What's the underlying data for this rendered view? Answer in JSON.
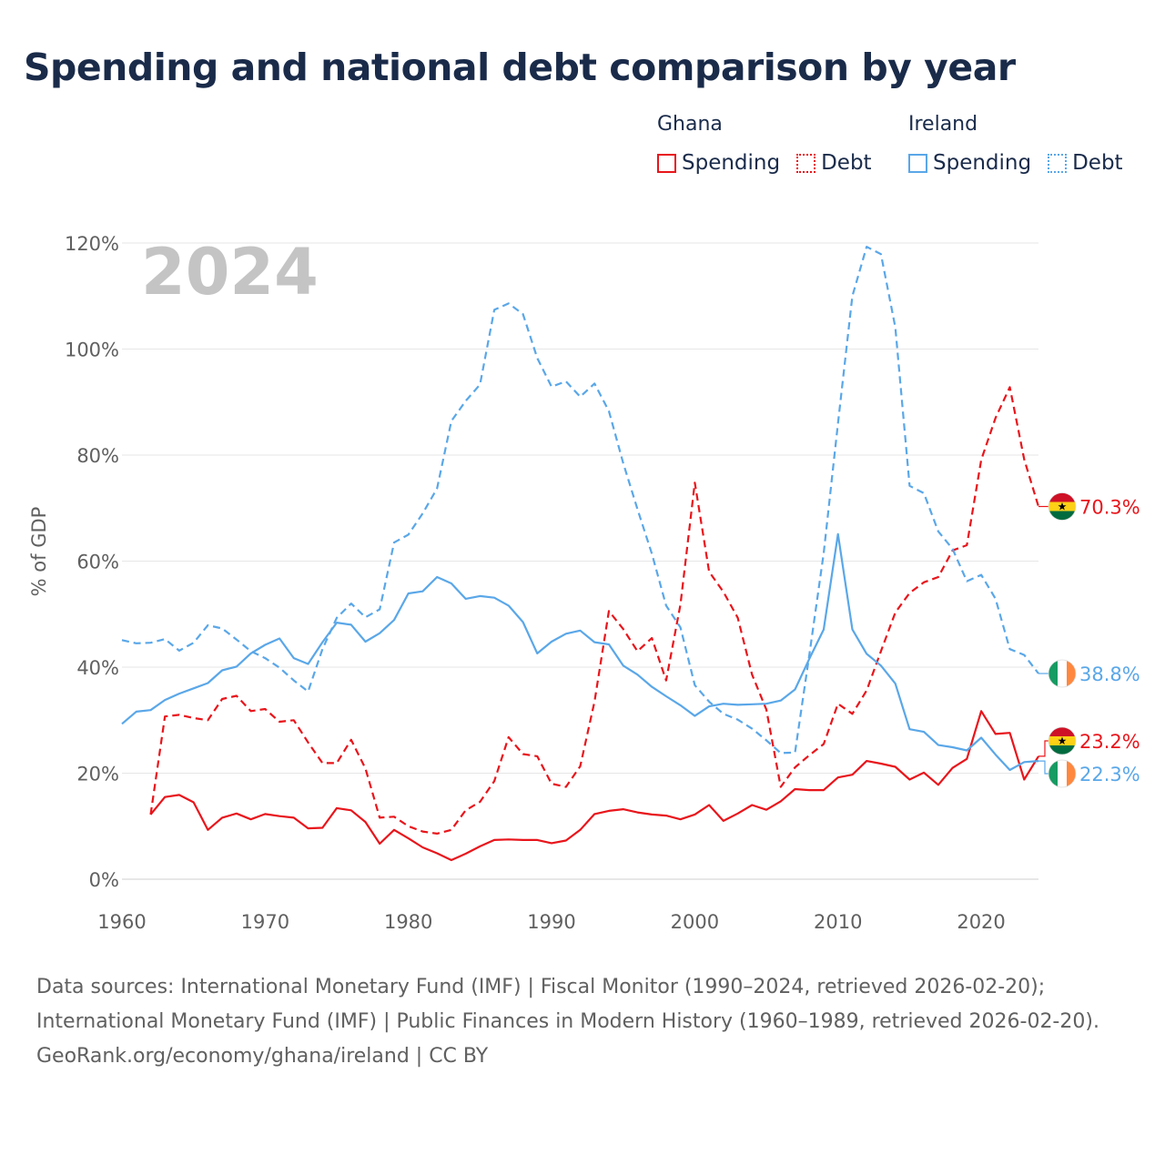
{
  "title": "Spending and national debt comparison by year",
  "legend": {
    "groups": [
      {
        "country": "Ghana",
        "color": "#e8151b",
        "items": [
          {
            "label": "Spending",
            "style": "solid"
          },
          {
            "label": "Debt",
            "style": "dotted"
          }
        ]
      },
      {
        "country": "Ireland",
        "color": "#5aa7e8",
        "items": [
          {
            "label": "Spending",
            "style": "solid"
          },
          {
            "label": "Debt",
            "style": "dotted"
          }
        ]
      }
    ]
  },
  "chart_data": {
    "type": "line",
    "year_watermark": "2024",
    "ylabel": "% of GDP",
    "xlabel": "",
    "ylim": [
      0,
      120
    ],
    "yticks": [
      0,
      20,
      40,
      60,
      80,
      100,
      120
    ],
    "ytick_labels": [
      "0%",
      "20%",
      "40%",
      "60%",
      "80%",
      "100%",
      "120%"
    ],
    "xlim": [
      1960,
      2024
    ],
    "xticks": [
      1960,
      1970,
      1980,
      1990,
      2000,
      2010,
      2020
    ],
    "xtick_labels": [
      "1960",
      "1970",
      "1980",
      "1990",
      "2000",
      "2010",
      "2020"
    ],
    "grid": true,
    "series": [
      {
        "name": "Ghana Spending",
        "country": "Ghana",
        "color": "#e8151b",
        "dash": "solid",
        "start_year": 1962,
        "values": [
          12.2,
          15.5,
          15.9,
          14.5,
          9.3,
          11.6,
          12.4,
          11.3,
          12.3,
          11.9,
          11.6,
          9.6,
          9.7,
          13.4,
          13.0,
          10.8,
          6.7,
          9.3,
          7.7,
          6.0,
          4.9,
          3.6,
          4.8,
          6.2,
          7.4,
          7.5,
          7.4,
          7.4,
          6.8,
          7.3,
          9.3,
          12.3,
          12.9,
          13.2,
          12.6,
          12.2,
          12.0,
          11.3,
          12.2,
          14.0,
          11.0,
          12.4,
          14.0,
          13.1,
          14.7,
          17.0,
          16.8,
          16.8,
          19.2,
          19.7,
          22.3,
          21.8,
          21.2,
          18.8,
          20.1,
          17.8,
          21.0,
          22.7,
          31.7,
          27.4,
          27.6,
          18.8,
          23.2
        ]
      },
      {
        "name": "Ghana Debt",
        "country": "Ghana",
        "color": "#e8151b",
        "dash": "dashed",
        "start_year": 1962,
        "values": [
          12.2,
          30.7,
          31.0,
          30.4,
          30.0,
          34.0,
          34.6,
          31.7,
          32.1,
          29.7,
          30.0,
          25.8,
          21.9,
          21.9,
          26.3,
          20.9,
          11.6,
          11.8,
          10.0,
          9.0,
          8.6,
          9.3,
          13.0,
          14.6,
          18.5,
          26.8,
          23.6,
          23.2,
          18.0,
          17.4,
          21.3,
          33.5,
          50.6,
          47.2,
          43.0,
          45.5,
          37.5,
          51.8,
          74.8,
          58.0,
          54.2,
          49.3,
          38.6,
          32.0,
          17.4,
          21.1,
          23.4,
          25.5,
          33.1,
          31.2,
          35.6,
          43.0,
          50.3,
          54.0,
          56.0,
          57.0,
          62.0,
          63.0,
          79.1,
          87.0,
          92.8,
          79.2,
          70.3
        ]
      },
      {
        "name": "Ireland Spending",
        "country": "Ireland",
        "color": "#5aa7e8",
        "dash": "solid",
        "start_year": 1960,
        "values": [
          29.3,
          31.6,
          31.9,
          33.8,
          35.0,
          36.0,
          37.0,
          39.4,
          40.1,
          42.6,
          44.2,
          45.4,
          41.7,
          40.6,
          44.7,
          48.4,
          48.0,
          44.8,
          46.4,
          48.9,
          53.9,
          54.3,
          57.0,
          55.8,
          52.9,
          53.4,
          53.1,
          51.6,
          48.5,
          42.6,
          44.8,
          46.3,
          46.9,
          44.7,
          44.3,
          40.3,
          38.6,
          36.3,
          34.5,
          32.8,
          30.8,
          32.6,
          33.1,
          32.9,
          33.0,
          33.1,
          33.7,
          35.8,
          41.6,
          47.1,
          65.1,
          47.1,
          42.5,
          40.3,
          36.9,
          28.3,
          27.8,
          25.3,
          24.9,
          24.3,
          26.7,
          23.5,
          20.6,
          22.1,
          22.3
        ]
      },
      {
        "name": "Ireland Debt",
        "country": "Ireland",
        "color": "#5aa7e8",
        "dash": "dashed",
        "start_year": 1960,
        "values": [
          45.1,
          44.5,
          44.6,
          45.3,
          43.1,
          44.6,
          47.9,
          47.3,
          45.2,
          43.0,
          41.7,
          39.9,
          37.5,
          35.4,
          43.4,
          49.3,
          52.0,
          49.4,
          50.9,
          63.5,
          65.0,
          69.0,
          73.7,
          86.4,
          90.2,
          93.3,
          107.4,
          108.6,
          106.6,
          98.3,
          92.9,
          93.9,
          91.0,
          93.5,
          88.3,
          78.5,
          69.8,
          61.4,
          51.6,
          47.5,
          36.6,
          33.5,
          31.2,
          30.1,
          28.4,
          26.2,
          23.8,
          23.9,
          42.4,
          61.5,
          86.0,
          110.0,
          119.3,
          117.9,
          104.1,
          74.2,
          72.8,
          65.6,
          62.3,
          56.2,
          57.4,
          52.9,
          43.4,
          42.3,
          38.8
        ]
      }
    ],
    "end_labels": [
      {
        "series": "Ghana Debt",
        "value": 70.3,
        "text": "70.3%",
        "flag": "ghana-flag"
      },
      {
        "series": "Ireland Debt",
        "value": 38.8,
        "text": "38.8%",
        "flag": "ireland-flag"
      },
      {
        "series": "Ghana Spending",
        "value": 23.2,
        "text": "23.2%",
        "flag": "ghana-flag"
      },
      {
        "series": "Ireland Spending",
        "value": 22.3,
        "text": "22.3%",
        "flag": "ireland-flag"
      }
    ]
  },
  "footer": {
    "sources": "Data sources: International Monetary Fund (IMF) | Fiscal Monitor (1990–2024, retrieved 2026-02-20); International Monetary Fund (IMF) | Public Finances in Modern History (1960–1989, retrieved 2026-02-20).",
    "credit": "GeoRank.org/economy/ghana/ireland | CC BY"
  }
}
